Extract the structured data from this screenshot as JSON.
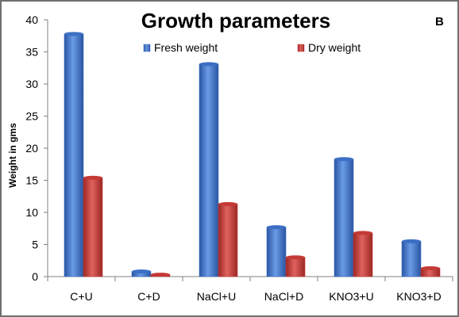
{
  "chart_data": {
    "type": "bar",
    "title": "Growth parameters",
    "corner_label": "B",
    "ylabel": "Weight in gms",
    "xlabel": "",
    "ylim": [
      0,
      40
    ],
    "yticks": [
      0,
      5,
      10,
      15,
      20,
      25,
      30,
      35,
      40
    ],
    "grid": false,
    "legend_position": "top",
    "categories": [
      "C+U",
      "C+D",
      "NaCl+U",
      "NaCl+D",
      "KNO3+U",
      "KNO3+D"
    ],
    "series": [
      {
        "name": "Fresh weight",
        "color": "#3b6fc4",
        "values": [
          37.8,
          0.8,
          33.1,
          7.7,
          18.3,
          5.5
        ]
      },
      {
        "name": "Dry weight",
        "color": "#c53a36",
        "values": [
          15.4,
          0.3,
          11.3,
          3.0,
          6.8,
          1.3
        ]
      }
    ]
  }
}
